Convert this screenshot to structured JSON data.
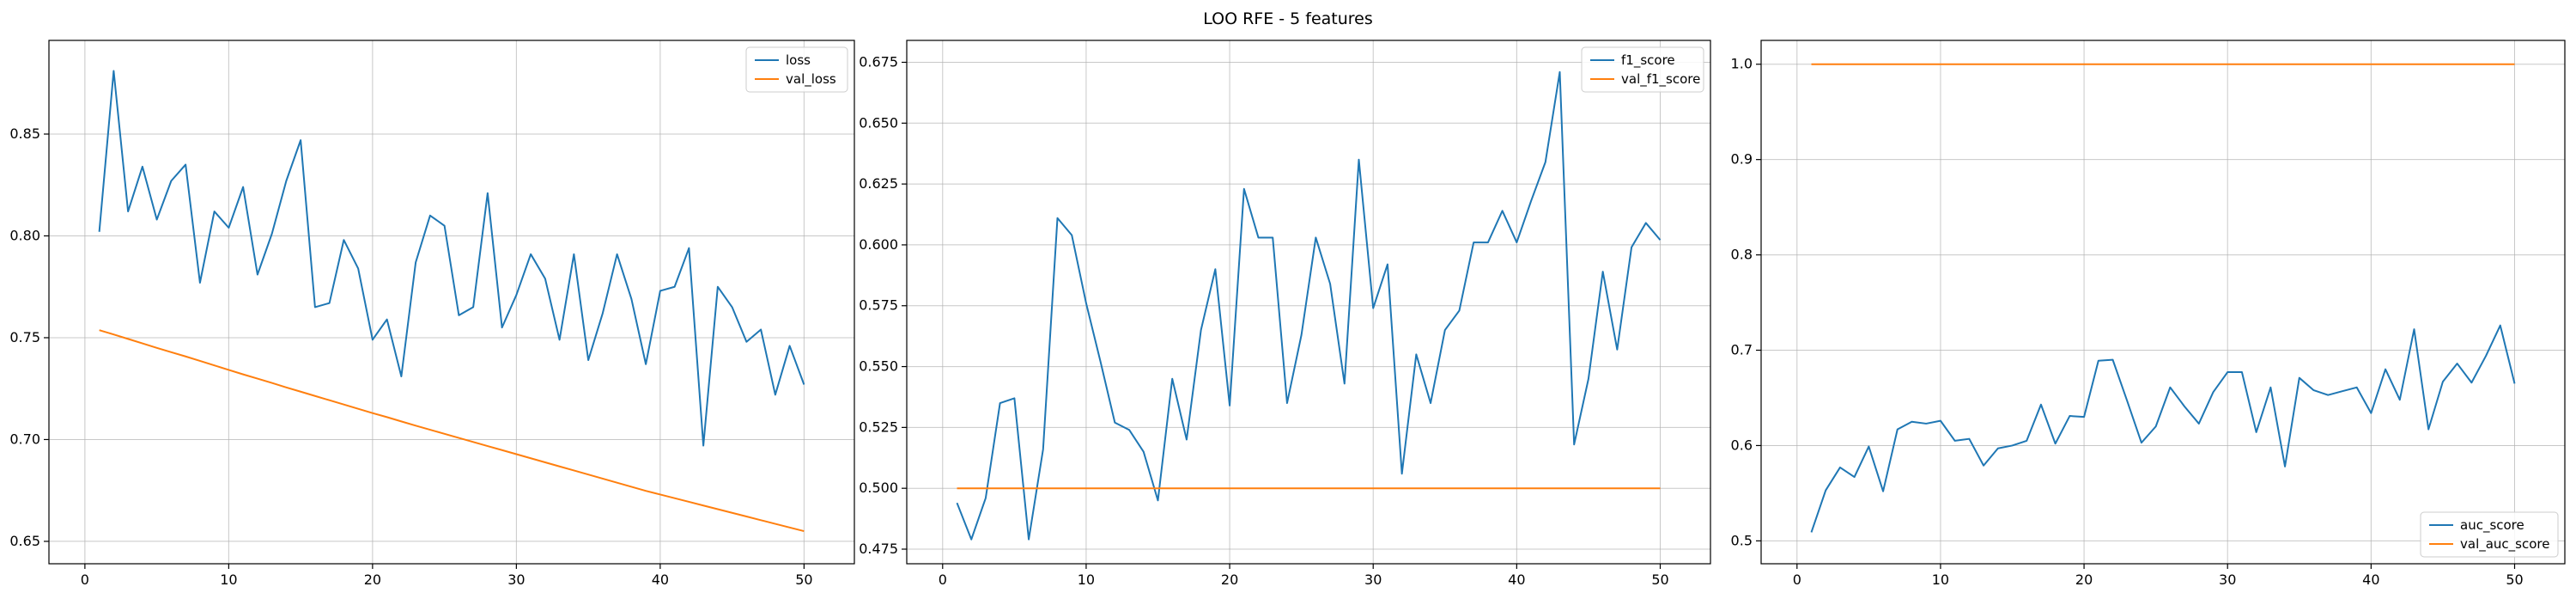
{
  "figure": {
    "title": "LOO RFE - 5 features"
  },
  "colors": {
    "series_1": "#1f77b4",
    "series_2": "#ff7f0e",
    "grid": "#b0b0b0",
    "axis": "#000000"
  },
  "chart_data": [
    {
      "type": "line",
      "title": "",
      "xlabel": "",
      "ylabel": "",
      "xlim": [
        -2.5,
        53.5
      ],
      "ylim": [
        0.639,
        0.896
      ],
      "xticks": [
        0,
        10,
        20,
        30,
        40,
        50
      ],
      "yticks": [
        0.65,
        0.7,
        0.75,
        0.8,
        0.85
      ],
      "ytick_labels": [
        "0.65",
        "0.70",
        "0.75",
        "0.80",
        "0.85"
      ],
      "grid": true,
      "legend": "upper-right",
      "x": [
        1,
        2,
        3,
        4,
        5,
        6,
        7,
        8,
        9,
        10,
        11,
        12,
        13,
        14,
        15,
        16,
        17,
        18,
        19,
        20,
        21,
        22,
        23,
        24,
        25,
        26,
        27,
        28,
        29,
        30,
        31,
        32,
        33,
        34,
        35,
        36,
        37,
        38,
        39,
        40,
        41,
        42,
        43,
        44,
        45,
        46,
        47,
        48,
        49,
        50
      ],
      "series": [
        {
          "name": "loss",
          "values": [
            0.802,
            0.881,
            0.812,
            0.834,
            0.808,
            0.827,
            0.835,
            0.777,
            0.812,
            0.804,
            0.824,
            0.781,
            0.801,
            0.827,
            0.847,
            0.765,
            0.767,
            0.798,
            0.784,
            0.749,
            0.759,
            0.731,
            0.787,
            0.81,
            0.805,
            0.761,
            0.765,
            0.821,
            0.755,
            0.771,
            0.791,
            0.779,
            0.749,
            0.791,
            0.739,
            0.762,
            0.791,
            0.769,
            0.737,
            0.773,
            0.775,
            0.794,
            0.697,
            0.775,
            0.765,
            0.748,
            0.754,
            0.722,
            0.746,
            0.727
          ]
        },
        {
          "name": "val_loss",
          "values": [
            0.7537,
            0.7516,
            0.7494,
            0.7472,
            0.745,
            0.7429,
            0.7408,
            0.7386,
            0.7364,
            0.7342,
            0.732,
            0.7299,
            0.7278,
            0.7256,
            0.7235,
            0.7214,
            0.7193,
            0.7172,
            0.7151,
            0.713,
            0.711,
            0.7089,
            0.7068,
            0.7048,
            0.7028,
            0.7008,
            0.6988,
            0.6968,
            0.6948,
            0.6928,
            0.6908,
            0.6888,
            0.6868,
            0.6848,
            0.6828,
            0.6808,
            0.6788,
            0.6768,
            0.6748,
            0.673,
            0.6712,
            0.6694,
            0.6676,
            0.6658,
            0.664,
            0.6622,
            0.6604,
            0.6586,
            0.6568,
            0.655
          ]
        }
      ]
    },
    {
      "type": "line",
      "title": "",
      "xlabel": "",
      "ylabel": "",
      "xlim": [
        -2.5,
        53.5
      ],
      "ylim": [
        0.469,
        0.684
      ],
      "xticks": [
        0,
        10,
        20,
        30,
        40,
        50
      ],
      "yticks": [
        0.475,
        0.5,
        0.525,
        0.55,
        0.575,
        0.6,
        0.625,
        0.65,
        0.675
      ],
      "ytick_labels": [
        "0.475",
        "0.500",
        "0.525",
        "0.550",
        "0.575",
        "0.600",
        "0.625",
        "0.650",
        "0.675"
      ],
      "grid": true,
      "legend": "upper-right",
      "x": [
        1,
        2,
        3,
        4,
        5,
        6,
        7,
        8,
        9,
        10,
        11,
        12,
        13,
        14,
        15,
        16,
        17,
        18,
        19,
        20,
        21,
        22,
        23,
        24,
        25,
        26,
        27,
        28,
        29,
        30,
        31,
        32,
        33,
        34,
        35,
        36,
        37,
        38,
        39,
        40,
        41,
        42,
        43,
        44,
        45,
        46,
        47,
        48,
        49,
        50
      ],
      "series": [
        {
          "name": "f1_score",
          "values": [
            0.494,
            0.479,
            0.496,
            0.535,
            0.537,
            0.479,
            0.516,
            0.611,
            0.604,
            0.576,
            0.552,
            0.527,
            0.524,
            0.515,
            0.495,
            0.545,
            0.52,
            0.565,
            0.59,
            0.534,
            0.623,
            0.603,
            0.603,
            0.535,
            0.563,
            0.603,
            0.584,
            0.543,
            0.635,
            0.574,
            0.592,
            0.506,
            0.555,
            0.535,
            0.565,
            0.573,
            0.601,
            0.601,
            0.614,
            0.601,
            0.618,
            0.634,
            0.671,
            0.518,
            0.545,
            0.589,
            0.557,
            0.599,
            0.609,
            0.602
          ]
        },
        {
          "name": "val_f1_score",
          "values": [
            0.5,
            0.5,
            0.5,
            0.5,
            0.5,
            0.5,
            0.5,
            0.5,
            0.5,
            0.5,
            0.5,
            0.5,
            0.5,
            0.5,
            0.5,
            0.5,
            0.5,
            0.5,
            0.5,
            0.5,
            0.5,
            0.5,
            0.5,
            0.5,
            0.5,
            0.5,
            0.5,
            0.5,
            0.5,
            0.5,
            0.5,
            0.5,
            0.5,
            0.5,
            0.5,
            0.5,
            0.5,
            0.5,
            0.5,
            0.5,
            0.5,
            0.5,
            0.5,
            0.5,
            0.5,
            0.5,
            0.5,
            0.5,
            0.5,
            0.5
          ]
        }
      ]
    },
    {
      "type": "line",
      "title": "",
      "xlabel": "",
      "ylabel": "",
      "xlim": [
        -2.5,
        53.5
      ],
      "ylim": [
        0.476,
        1.025
      ],
      "xticks": [
        0,
        10,
        20,
        30,
        40,
        50
      ],
      "yticks": [
        0.5,
        0.6,
        0.7,
        0.8,
        0.9,
        1.0
      ],
      "ytick_labels": [
        "0.5",
        "0.6",
        "0.7",
        "0.8",
        "0.9",
        "1.0"
      ],
      "grid": true,
      "legend": "lower-right",
      "x": [
        1,
        2,
        3,
        4,
        5,
        6,
        7,
        8,
        9,
        10,
        11,
        12,
        13,
        14,
        15,
        16,
        17,
        18,
        19,
        20,
        21,
        22,
        23,
        24,
        25,
        26,
        27,
        28,
        29,
        30,
        31,
        32,
        33,
        34,
        35,
        36,
        37,
        38,
        39,
        40,
        41,
        42,
        43,
        44,
        45,
        46,
        47,
        48,
        49,
        50
      ],
      "series": [
        {
          "name": "auc_score",
          "values": [
            0.509,
            0.553,
            0.577,
            0.567,
            0.599,
            0.552,
            0.617,
            0.625,
            0.623,
            0.626,
            0.605,
            0.607,
            0.579,
            0.597,
            0.6,
            0.605,
            0.643,
            0.602,
            0.631,
            0.63,
            0.689,
            0.69,
            0.647,
            0.603,
            0.62,
            0.661,
            0.641,
            0.623,
            0.656,
            0.677,
            0.677,
            0.614,
            0.661,
            0.578,
            0.671,
            0.658,
            0.653,
            0.657,
            0.661,
            0.634,
            0.68,
            0.648,
            0.722,
            0.617,
            0.667,
            0.686,
            0.666,
            0.694,
            0.726,
            0.665
          ]
        },
        {
          "name": "val_auc_score",
          "values": [
            1.0,
            1.0,
            1.0,
            1.0,
            1.0,
            1.0,
            1.0,
            1.0,
            1.0,
            1.0,
            1.0,
            1.0,
            1.0,
            1.0,
            1.0,
            1.0,
            1.0,
            1.0,
            1.0,
            1.0,
            1.0,
            1.0,
            1.0,
            1.0,
            1.0,
            1.0,
            1.0,
            1.0,
            1.0,
            1.0,
            1.0,
            1.0,
            1.0,
            1.0,
            1.0,
            1.0,
            1.0,
            1.0,
            1.0,
            1.0,
            1.0,
            1.0,
            1.0,
            1.0,
            1.0,
            1.0,
            1.0,
            1.0,
            1.0,
            1.0
          ]
        }
      ]
    }
  ]
}
